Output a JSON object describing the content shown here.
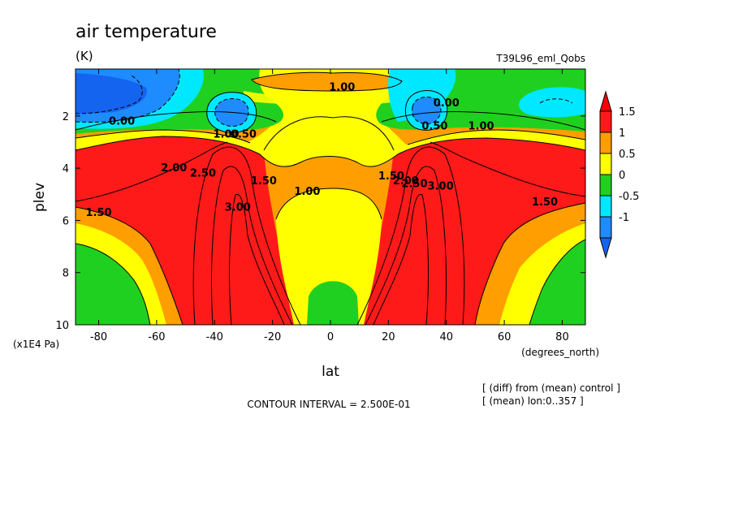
{
  "chart_data": {
    "type": "heatmap",
    "title": "air temperature",
    "units": "(K)",
    "run_label": "T39L96_eml_Qobs",
    "xlabel": "lat",
    "ylabel": "plev",
    "x_units": "(degrees_north)",
    "y_units": "(x1E4 Pa)",
    "x_ticks": [
      "-80",
      "-60",
      "-40",
      "-20",
      "0",
      "20",
      "40",
      "60",
      "80"
    ],
    "x_tick_values": [
      -80,
      -60,
      -40,
      -20,
      0,
      20,
      40,
      60,
      80
    ],
    "y_ticks": [
      "2",
      "4",
      "6",
      "8",
      "10"
    ],
    "y_tick_values": [
      2,
      4,
      6,
      8,
      10
    ],
    "xlim": [
      -88,
      88
    ],
    "ylim": [
      0.2,
      10
    ],
    "y_inverted": true,
    "contour_interval_text": "CONTOUR INTERVAL = 2.500E-01",
    "notes": [
      "[ (diff) from (mean) control ]",
      "[ (mean) lon:0..357 ]"
    ],
    "colorbar": {
      "labels": [
        "1.5",
        "1",
        "0.5",
        "0",
        "-0.5",
        "-1"
      ],
      "levels": [
        1.5,
        1,
        0.5,
        0,
        -0.5,
        -1
      ],
      "colors": [
        "#ff1a1a",
        "#ff9e00",
        "#ffff00",
        "#20d020",
        "#00e8ff",
        "#1e8cff"
      ],
      "over_color": "#ff0000",
      "under_color": "#1464f0"
    },
    "contour_labels": [
      {
        "text": "1.00",
        "lat": 4,
        "p": 0.9
      },
      {
        "text": "0.00",
        "lat": -72,
        "p": 2.2
      },
      {
        "text": "1.00",
        "lat": -36,
        "p": 2.7
      },
      {
        "text": "0.50",
        "lat": -30,
        "p": 2.7
      },
      {
        "text": "0.00",
        "lat": 40,
        "p": 1.5
      },
      {
        "text": "0.50",
        "lat": 36,
        "p": 2.4
      },
      {
        "text": "1.00",
        "lat": 52,
        "p": 2.4
      },
      {
        "text": "2.00",
        "lat": -54,
        "p": 4.0
      },
      {
        "text": "2.50",
        "lat": -44,
        "p": 4.2
      },
      {
        "text": "1.50",
        "lat": -23,
        "p": 4.5
      },
      {
        "text": "3.00",
        "lat": -32,
        "p": 5.5
      },
      {
        "text": "1.00",
        "lat": -8,
        "p": 4.9
      },
      {
        "text": "1.50",
        "lat": 21,
        "p": 4.3
      },
      {
        "text": "2.00",
        "lat": 26,
        "p": 4.5
      },
      {
        "text": "2.50",
        "lat": 29,
        "p": 4.6
      },
      {
        "text": "3.00",
        "lat": 38,
        "p": 4.7
      },
      {
        "text": "1.50",
        "lat": -80,
        "p": 5.7
      },
      {
        "text": "1.50",
        "lat": 74,
        "p": 5.3
      }
    ]
  }
}
